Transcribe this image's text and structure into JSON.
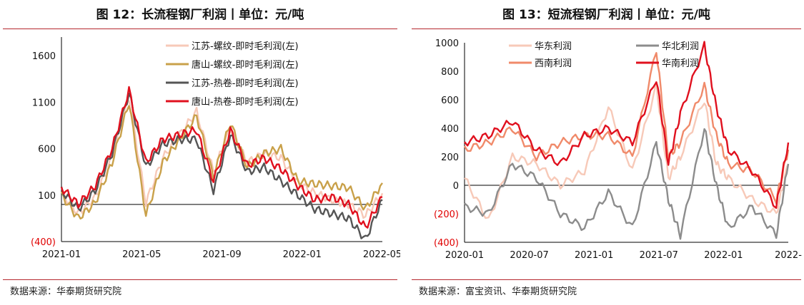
{
  "charts": {
    "left": {
      "title": "图 12：长流程钢厂利润丨单位：元/吨",
      "source": "数据来源：华泰期货研究院"
    },
    "right": {
      "title": "图 13：短流程钢厂利润丨单位：元/吨",
      "source": "数据来源：富宝资讯、华泰期货研究院"
    }
  },
  "chart_data": [
    {
      "type": "line",
      "title": "图 12：长流程钢厂利润丨单位：元/吨",
      "xlabel": "",
      "ylabel": "",
      "ylim": [
        -400,
        1800
      ],
      "y_ticks": [
        -400,
        100,
        600,
        1100,
        1600
      ],
      "y_tick_labels": [
        "(400)",
        "100",
        "600",
        "1100",
        "1600"
      ],
      "x_range": [
        "2021-01",
        "2022-08"
      ],
      "x_tick_labels": [
        "2021-01",
        "2021-05",
        "2021-09",
        "2022-01",
        "2022-05"
      ],
      "grid": false,
      "legend_position": "top-right",
      "series": [
        {
          "name": "江苏-螺纹-即时毛利润(左)",
          "color": "#f7c9b8",
          "x": [
            "2021-01",
            "2021-02",
            "2021-03",
            "2021-04",
            "2021-05",
            "2021-06",
            "2021-07",
            "2021-08",
            "2021-09",
            "2021-10",
            "2021-11",
            "2021-12",
            "2022-01",
            "2022-02",
            "2022-03",
            "2022-04",
            "2022-05",
            "2022-06",
            "2022-07",
            "2022-08"
          ],
          "y": [
            120,
            -100,
            80,
            500,
            1150,
            20,
            500,
            750,
            1000,
            350,
            820,
            450,
            550,
            500,
            230,
            120,
            50,
            0,
            -120,
            120
          ]
        },
        {
          "name": "唐山-螺纹-即时毛利润(左)",
          "color": "#c9a14a",
          "x": [
            "2021-01",
            "2021-02",
            "2021-03",
            "2021-04",
            "2021-05",
            "2021-06",
            "2021-07",
            "2021-08",
            "2021-09",
            "2021-10",
            "2021-11",
            "2021-12",
            "2022-01",
            "2022-02",
            "2022-03",
            "2022-04",
            "2022-05",
            "2022-06",
            "2022-07",
            "2022-08"
          ],
          "y": [
            100,
            -150,
            20,
            450,
            1100,
            -120,
            450,
            700,
            950,
            300,
            880,
            400,
            550,
            600,
            250,
            220,
            200,
            180,
            -50,
            230
          ]
        },
        {
          "name": "江苏-热卷-即时毛利润(左)",
          "color": "#555555",
          "x": [
            "2021-01",
            "2021-02",
            "2021-03",
            "2021-04",
            "2021-05",
            "2021-06",
            "2021-07",
            "2021-08",
            "2021-09",
            "2021-10",
            "2021-11",
            "2021-12",
            "2022-01",
            "2022-02",
            "2022-03",
            "2022-04",
            "2022-05",
            "2022-06",
            "2022-07",
            "2022-08"
          ],
          "y": [
            150,
            -50,
            150,
            550,
            1200,
            400,
            650,
            700,
            700,
            150,
            750,
            350,
            400,
            250,
            100,
            -50,
            -100,
            -150,
            -380,
            50
          ]
        },
        {
          "name": "唐山-热卷-即时毛利润(左)",
          "color": "#e0101e",
          "x": [
            "2021-01",
            "2021-02",
            "2021-03",
            "2021-04",
            "2021-05",
            "2021-06",
            "2021-07",
            "2021-08",
            "2021-09",
            "2021-10",
            "2021-11",
            "2021-12",
            "2022-01",
            "2022-02",
            "2022-03",
            "2022-04",
            "2022-05",
            "2022-06",
            "2022-07",
            "2022-08"
          ],
          "y": [
            180,
            0,
            200,
            600,
            1230,
            450,
            700,
            750,
            800,
            250,
            800,
            420,
            500,
            380,
            200,
            50,
            80,
            0,
            -250,
            80
          ]
        }
      ]
    },
    {
      "type": "line",
      "title": "图 13：短流程钢厂利润丨单位：元/吨",
      "xlabel": "",
      "ylabel": "",
      "ylim": [
        -400,
        1000
      ],
      "y_ticks": [
        -400,
        -200,
        0,
        200,
        400,
        600,
        800,
        1000
      ],
      "y_tick_labels": [
        "(400)",
        "(200)",
        "0",
        "200",
        "400",
        "600",
        "800",
        "1000"
      ],
      "x_range": [
        "2020-01",
        "2022-04"
      ],
      "x_tick_labels": [
        "2020-01",
        "2020-07",
        "2021-01",
        "2021-07",
        "2022-01",
        "2022-"
      ],
      "grid": false,
      "legend_position": "top",
      "series": [
        {
          "name": "华东利润",
          "color": "#f7c9b8",
          "x": [
            "2020-01",
            "2020-03",
            "2020-05",
            "2020-07",
            "2020-09",
            "2020-11",
            "2021-01",
            "2021-03",
            "2021-05",
            "2021-06",
            "2021-07",
            "2021-09",
            "2021-10",
            "2021-11",
            "2022-01",
            "2022-03",
            "2022-04"
          ],
          "y": [
            50,
            -250,
            200,
            150,
            0,
            100,
            550,
            100,
            700,
            50,
            200,
            600,
            150,
            50,
            -100,
            -200,
            150
          ]
        },
        {
          "name": "华北利润",
          "color": "#8c8c8c",
          "x": [
            "2020-01",
            "2020-03",
            "2020-05",
            "2020-07",
            "2020-09",
            "2020-11",
            "2021-01",
            "2021-03",
            "2021-05",
            "2021-06",
            "2021-07",
            "2021-09",
            "2021-10",
            "2021-11",
            "2022-01",
            "2022-03",
            "2022-04"
          ],
          "y": [
            -150,
            -200,
            150,
            50,
            -200,
            -300,
            -50,
            -300,
            300,
            -100,
            -350,
            400,
            0,
            -300,
            -150,
            -350,
            150
          ]
        },
        {
          "name": "西南利润",
          "color": "#f08a6a",
          "x": [
            "2020-01",
            "2020-03",
            "2020-05",
            "2020-07",
            "2020-09",
            "2020-11",
            "2021-01",
            "2021-03",
            "2021-05",
            "2021-06",
            "2021-07",
            "2021-09",
            "2021-10",
            "2021-11",
            "2022-01",
            "2022-03",
            "2022-04"
          ],
          "y": [
            250,
            300,
            400,
            200,
            300,
            350,
            350,
            200,
            950,
            200,
            300,
            700,
            350,
            150,
            100,
            -100,
            250
          ]
        },
        {
          "name": "华南利润",
          "color": "#e0101e",
          "x": [
            "2020-01",
            "2020-03",
            "2020-05",
            "2020-07",
            "2020-09",
            "2020-11",
            "2021-01",
            "2021-03",
            "2021-05",
            "2021-06",
            "2021-07",
            "2021-09",
            "2021-10",
            "2021-11",
            "2022-01",
            "2022-03",
            "2022-04"
          ],
          "y": [
            300,
            350,
            450,
            250,
            150,
            350,
            400,
            300,
            750,
            150,
            500,
            980,
            550,
            250,
            100,
            -150,
            300
          ]
        }
      ]
    }
  ]
}
